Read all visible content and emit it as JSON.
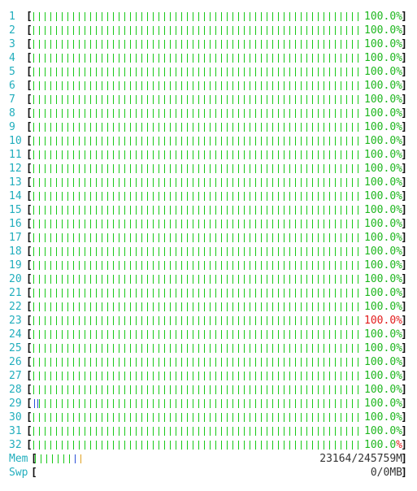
{
  "cpus": [
    {
      "label": "1",
      "value": "100.0%",
      "level": 1.0
    },
    {
      "label": "2",
      "value": "100.0%",
      "level": 1.0
    },
    {
      "label": "3",
      "value": "100.0%",
      "level": 1.0
    },
    {
      "label": "4",
      "value": "100.0%",
      "level": 1.0
    },
    {
      "label": "5",
      "value": "100.0%",
      "level": 1.0
    },
    {
      "label": "6",
      "value": "100.0%",
      "level": 1.0
    },
    {
      "label": "7",
      "value": "100.0%",
      "level": 1.0
    },
    {
      "label": "8",
      "value": "100.0%",
      "level": 1.0
    },
    {
      "label": "9",
      "value": "100.0%",
      "level": 1.0
    },
    {
      "label": "10",
      "value": "100.0%",
      "level": 1.0
    },
    {
      "label": "11",
      "value": "100.0%",
      "level": 1.0
    },
    {
      "label": "12",
      "value": "100.0%",
      "level": 1.0
    },
    {
      "label": "13",
      "value": "100.0%",
      "level": 1.0
    },
    {
      "label": "14",
      "value": "100.0%",
      "level": 1.0
    },
    {
      "label": "15",
      "value": "100.0%",
      "level": 1.0
    },
    {
      "label": "16",
      "value": "100.0%",
      "level": 1.0
    },
    {
      "label": "17",
      "value": "100.0%",
      "level": 1.0
    },
    {
      "label": "18",
      "value": "100.0%",
      "level": 1.0
    },
    {
      "label": "19",
      "value": "100.0%",
      "level": 1.0
    },
    {
      "label": "20",
      "value": "100.0%",
      "level": 1.0
    },
    {
      "label": "21",
      "value": "100.0%",
      "level": 1.0
    },
    {
      "label": "22",
      "value": "100.0%",
      "level": 1.0
    },
    {
      "label": "23",
      "value": "100.0%",
      "level": 1.0
    },
    {
      "label": "24",
      "value": "100.0%",
      "level": 1.0
    },
    {
      "label": "25",
      "value": "100.0%",
      "level": 1.0
    },
    {
      "label": "26",
      "value": "100.0%",
      "level": 1.0
    },
    {
      "label": "27",
      "value": "100.0%",
      "level": 1.0
    },
    {
      "label": "28",
      "value": "100.0%",
      "level": 1.0
    },
    {
      "label": "29",
      "value": "100.0%",
      "level": 1.0
    },
    {
      "label": "30",
      "value": "100.0%",
      "level": 1.0
    },
    {
      "label": "31",
      "value": "100.0%",
      "level": 1.0
    },
    {
      "label": "32",
      "value": "100.0%",
      "level": 1.0
    }
  ],
  "mem": {
    "label": "Mem",
    "value": "23164/245759M",
    "level": 0.094
  },
  "swp": {
    "label": "Swp",
    "value": "0/0MB",
    "level": 0.0
  },
  "colors": {
    "label": "#22aebd",
    "bar": "#18c818",
    "value": "#1fb71f",
    "alert": "#e21c1c",
    "mem_used": "#18c818",
    "mem_buffers": "#2a4fd8",
    "mem_cache": "#e0a020"
  }
}
